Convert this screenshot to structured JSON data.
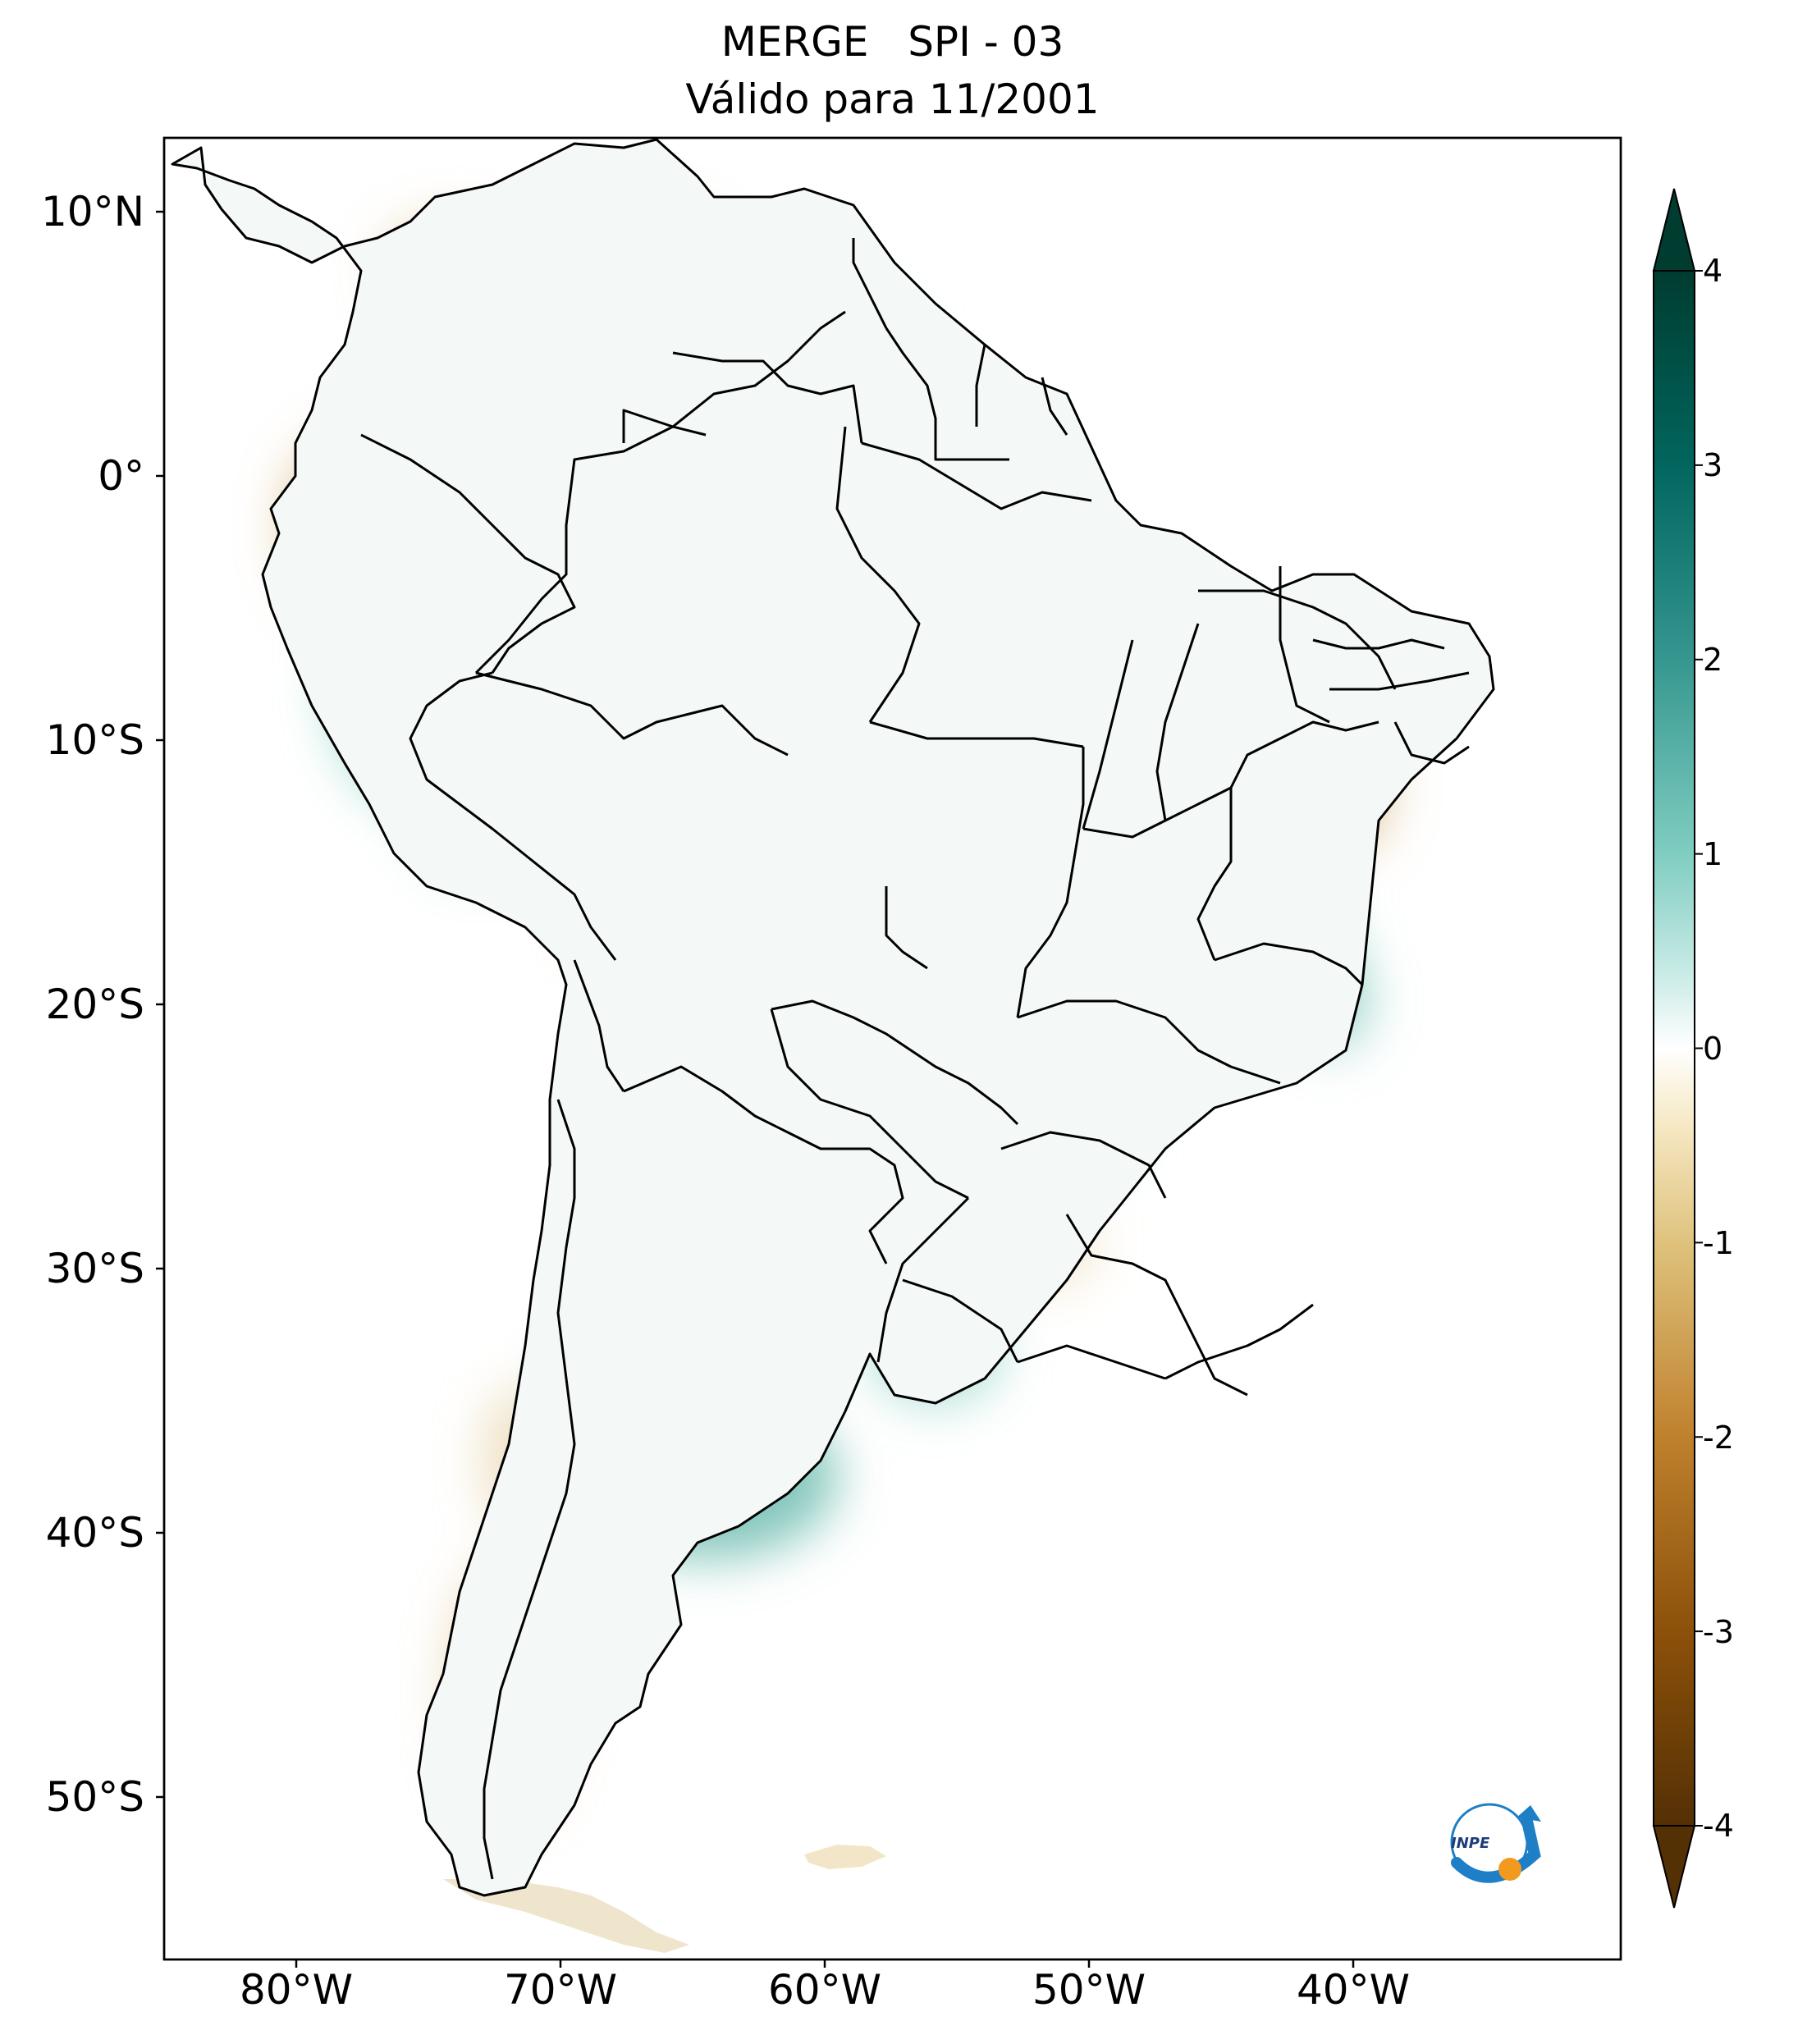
{
  "title": {
    "line1": "MERGE   SPI - 03",
    "line2": "Válido para 11/2001"
  },
  "map": {
    "region": "South America",
    "projection": "PlateCarree",
    "lon_range": [
      -85,
      -30
    ],
    "lat_range": [
      -56,
      13
    ]
  },
  "axes": {
    "lat_labels": [
      "10°N",
      "0°",
      "10°S",
      "20°S",
      "30°S",
      "40°S",
      "50°S"
    ],
    "lon_labels": [
      "80°W",
      "70°W",
      "60°W",
      "50°W",
      "40°W"
    ]
  },
  "colorbar": {
    "colormap": "BrBG",
    "min": -4,
    "max": 4,
    "extend": "both",
    "ticks": [
      "4",
      "3",
      "2",
      "1",
      "0",
      "-1",
      "-2",
      "-3",
      "-4"
    ],
    "colors": {
      "top": "#003c30",
      "wet": "#35978f",
      "light_wet": "#c7eae5",
      "neutral": "#f5f5f5",
      "light_dry": "#f6e8c3",
      "dry": "#bf812d",
      "bottom": "#543005"
    }
  },
  "logo": {
    "text": "INPE"
  }
}
